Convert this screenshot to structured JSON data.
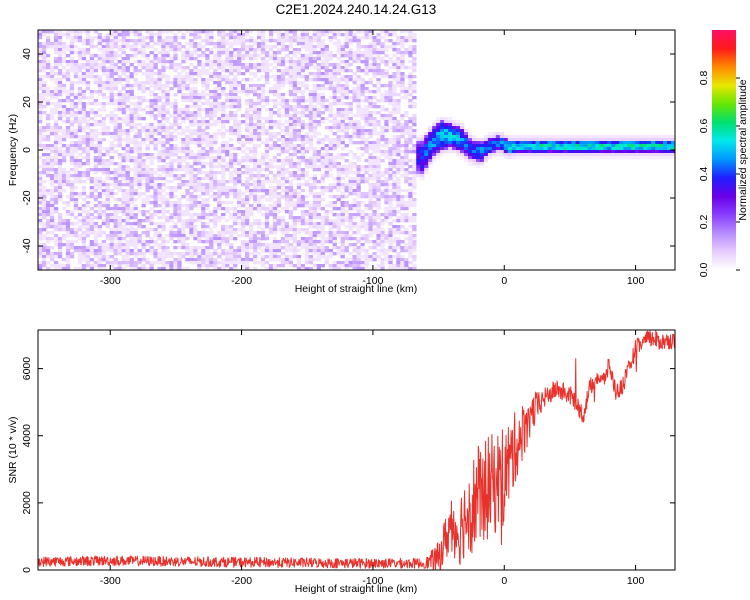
{
  "title": "C2E1.2024.240.14.24.G13",
  "chart_data": [
    {
      "type": "heatmap",
      "xlabel": "Height of straight line (km)",
      "ylabel": "Frequency (Hz)",
      "xlim": [
        -355,
        130
      ],
      "ylim": [
        -50,
        50
      ],
      "xticks": [
        -300,
        -200,
        -100,
        0,
        100
      ],
      "yticks": [
        -40,
        -20,
        0,
        20,
        40
      ],
      "colorbar": {
        "label": "Normalized spectral amplitude",
        "range": [
          0.0,
          1.0
        ],
        "ticks": [
          0.0,
          0.2,
          0.4,
          0.6,
          0.8
        ],
        "colors": [
          "#ffffff",
          "#e7ccff",
          "#b68cff",
          "#8a3dff",
          "#6a00e8",
          "#1f1fff",
          "#0098ff",
          "#00e8e8",
          "#00e070",
          "#66e600",
          "#e8e800",
          "#ff8800",
          "#ff1a1a",
          "#ff1066"
        ]
      },
      "regions": [
        {
          "name": "noise",
          "x_range": [
            -355,
            -68
          ],
          "freq_range": [
            -50,
            50
          ],
          "amplitude_range": [
            0.0,
            0.15
          ]
        },
        {
          "name": "signal",
          "x_range": [
            -68,
            130
          ],
          "amplitude_range": [
            0.2,
            0.7
          ]
        }
      ],
      "signal_ridge": {
        "x": [
          -68,
          -62,
          -55,
          -48,
          -40,
          -32,
          -25,
          -18,
          -10,
          -3,
          3,
          10,
          30,
          60,
          90,
          100,
          110,
          130
        ],
        "freq": [
          -3,
          -3,
          3,
          6,
          6,
          4,
          0,
          -1,
          2,
          3,
          1,
          1.5,
          1.5,
          1.5,
          1.5,
          1.5,
          1.5,
          1.5
        ],
        "width": [
          6,
          7,
          6,
          6,
          5,
          5,
          4,
          4,
          3,
          3,
          3,
          2.5,
          2.5,
          2.5,
          2.5,
          2.5,
          2.5,
          2.5
        ],
        "amplitude": [
          0.32,
          0.4,
          0.45,
          0.5,
          0.5,
          0.45,
          0.42,
          0.45,
          0.45,
          0.45,
          0.55,
          0.55,
          0.55,
          0.55,
          0.55,
          0.55,
          0.55,
          0.55
        ]
      }
    },
    {
      "type": "line",
      "xlabel": "Height of straight line (km)",
      "ylabel": "SNR (10 * v/v)",
      "xlim": [
        -355,
        130
      ],
      "ylim": [
        0,
        7150
      ],
      "xticks": [
        -300,
        -200,
        -100,
        0,
        100
      ],
      "yticks": [
        0,
        2000,
        4000,
        6000
      ],
      "color": "#e8312b",
      "trend": {
        "x": [
          -355,
          -300,
          -200,
          -100,
          -60,
          -50,
          -45,
          -40,
          -35,
          -30,
          -20,
          -10,
          0,
          10,
          20,
          30,
          40,
          50,
          55,
          60,
          65,
          70,
          75,
          80,
          85,
          90,
          95,
          100,
          110,
          120,
          130
        ],
        "y": [
          250,
          280,
          230,
          200,
          200,
          350,
          900,
          1400,
          1100,
          1600,
          2200,
          2500,
          2800,
          3800,
          4600,
          5100,
          5400,
          5200,
          5000,
          4600,
          5400,
          5800,
          5600,
          6100,
          5300,
          5500,
          6000,
          6600,
          6900,
          6800,
          6850
        ]
      },
      "noise_amplitude": {
        "x": [
          -355,
          -60,
          -50,
          -20,
          0,
          10,
          30,
          130
        ],
        "y": [
          150,
          150,
          500,
          1600,
          1500,
          1000,
          300,
          250
        ]
      }
    }
  ]
}
